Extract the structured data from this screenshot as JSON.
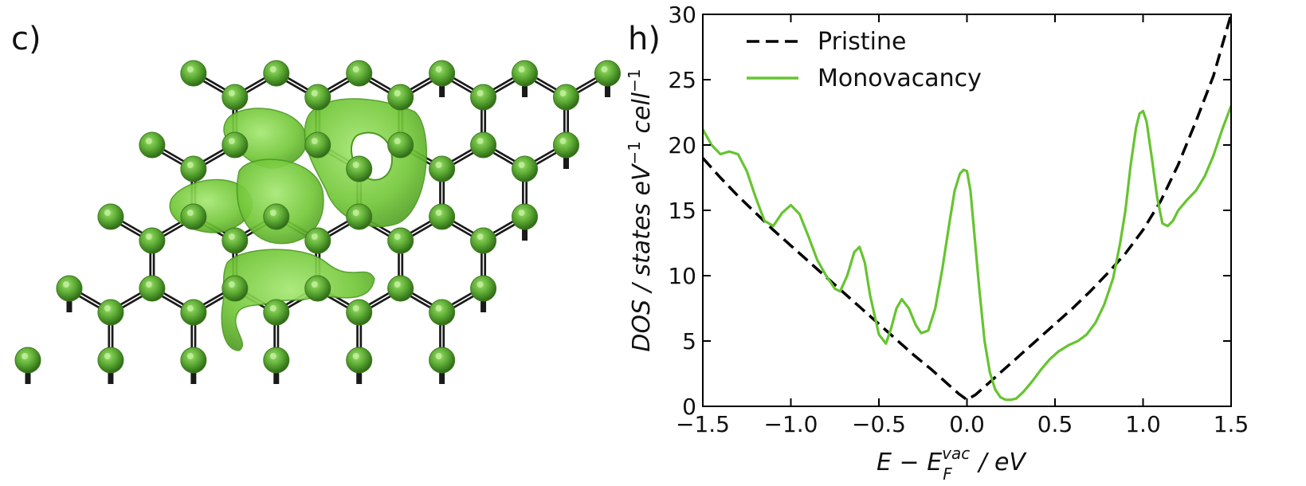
{
  "panels": {
    "left_label": "c)",
    "right_label": "h)"
  },
  "colors": {
    "pristine": "#000000",
    "monovacancy": "#66c430",
    "atom_fill": "#5aa832",
    "atom_highlight": "#8fd860",
    "isosurface": "#78cf3c",
    "bond": "#1a1a1a"
  },
  "structure": {
    "description_icon": "graphene-monovacancy-isosurface"
  },
  "chart_data": {
    "type": "line",
    "xlabel_main": "E − E",
    "xlabel_sub": "F",
    "xlabel_sup": "vac",
    "xlabel_tail": " / eV",
    "ylabel_main": "DOS / states eV",
    "ylabel_sup": "−1",
    "ylabel_tail": " cell",
    "ylabel_sup2": "−1",
    "xlim": [
      -1.5,
      1.5
    ],
    "ylim": [
      0,
      30
    ],
    "xticks": [
      -1.5,
      -1.0,
      -0.5,
      0.0,
      0.5,
      1.0,
      1.5
    ],
    "xtick_labels": [
      "−1.5",
      "−1.0",
      "−0.5",
      "0.0",
      "0.5",
      "1.0",
      "1.5"
    ],
    "yticks": [
      0,
      5,
      10,
      15,
      20,
      25,
      30
    ],
    "ytick_labels": [
      "0",
      "5",
      "10",
      "15",
      "20",
      "25",
      "30"
    ],
    "legend_position": "top-left",
    "grid": false,
    "series": [
      {
        "name": "Pristine",
        "style": "dashed",
        "color": "#000000",
        "x": [
          -1.5,
          -1.4,
          -1.3,
          -1.2,
          -1.1,
          -1.0,
          -0.9,
          -0.8,
          -0.7,
          -0.6,
          -0.5,
          -0.4,
          -0.3,
          -0.2,
          -0.1,
          -0.05,
          0.0,
          0.05,
          0.1,
          0.2,
          0.3,
          0.4,
          0.5,
          0.6,
          0.7,
          0.8,
          0.9,
          1.0,
          1.1,
          1.2,
          1.3,
          1.4,
          1.5
        ],
        "y": [
          19.0,
          17.5,
          16.1,
          14.8,
          13.5,
          12.3,
          11.1,
          9.9,
          8.7,
          7.5,
          6.3,
          5.1,
          3.9,
          2.8,
          1.6,
          1.0,
          0.5,
          0.9,
          1.5,
          2.7,
          3.9,
          5.1,
          6.3,
          7.5,
          8.8,
          10.2,
          11.7,
          13.5,
          15.7,
          18.5,
          21.8,
          25.3,
          30.0
        ]
      },
      {
        "name": "Monovacancy",
        "style": "solid",
        "color": "#66c430",
        "x": [
          -1.5,
          -1.45,
          -1.4,
          -1.35,
          -1.3,
          -1.25,
          -1.2,
          -1.15,
          -1.1,
          -1.05,
          -1.0,
          -0.95,
          -0.9,
          -0.85,
          -0.8,
          -0.75,
          -0.72,
          -0.68,
          -0.64,
          -0.61,
          -0.58,
          -0.55,
          -0.5,
          -0.46,
          -0.43,
          -0.4,
          -0.37,
          -0.33,
          -0.29,
          -0.26,
          -0.22,
          -0.18,
          -0.14,
          -0.1,
          -0.07,
          -0.04,
          -0.02,
          0.0,
          0.02,
          0.04,
          0.07,
          0.1,
          0.13,
          0.16,
          0.19,
          0.22,
          0.25,
          0.28,
          0.32,
          0.37,
          0.42,
          0.47,
          0.52,
          0.58,
          0.63,
          0.68,
          0.73,
          0.78,
          0.83,
          0.87,
          0.9,
          0.93,
          0.96,
          0.98,
          1.0,
          1.02,
          1.05,
          1.08,
          1.11,
          1.14,
          1.17,
          1.2,
          1.25,
          1.3,
          1.35,
          1.4,
          1.45,
          1.5
        ],
        "y": [
          21.2,
          20.0,
          19.3,
          19.5,
          19.3,
          18.0,
          16.0,
          14.2,
          13.8,
          14.8,
          15.4,
          14.7,
          13.0,
          11.2,
          10.0,
          9.0,
          8.8,
          10.0,
          11.8,
          12.2,
          11.0,
          8.5,
          5.5,
          4.8,
          6.0,
          7.5,
          8.2,
          7.5,
          6.2,
          5.6,
          5.8,
          7.5,
          10.5,
          14.0,
          16.5,
          17.8,
          18.1,
          18.0,
          16.5,
          13.5,
          9.0,
          5.0,
          2.6,
          1.3,
          0.7,
          0.5,
          0.5,
          0.6,
          1.1,
          1.9,
          2.8,
          3.6,
          4.2,
          4.7,
          5.0,
          5.5,
          6.4,
          7.8,
          9.8,
          12.5,
          15.0,
          18.5,
          21.3,
          22.4,
          22.6,
          21.8,
          19.0,
          16.0,
          14.0,
          13.8,
          14.2,
          15.0,
          15.8,
          16.5,
          17.6,
          19.2,
          21.2,
          23.0
        ]
      }
    ]
  }
}
